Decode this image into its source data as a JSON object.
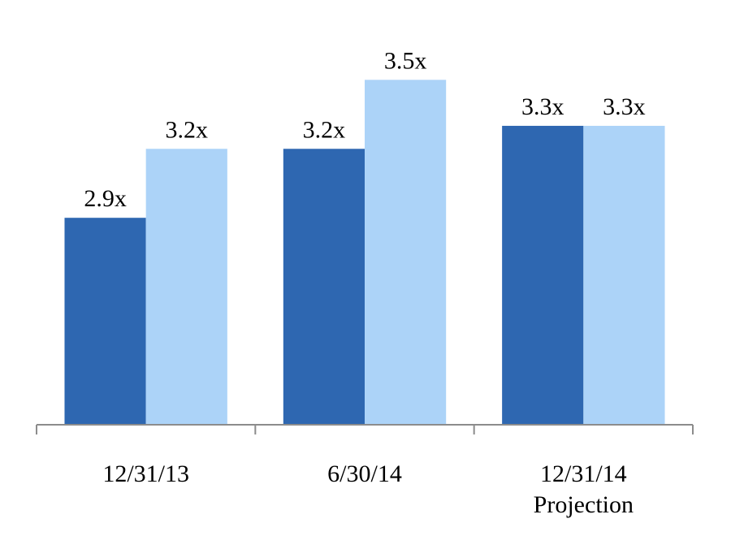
{
  "chart_data": {
    "type": "bar",
    "categories": [
      "12/31/13",
      "6/30/14",
      "12/31/14\nProjection"
    ],
    "series": [
      {
        "color": "#2e67b1",
        "values": [
          2.9,
          3.2,
          3.3
        ],
        "value_labels": [
          "2.9x",
          "3.2x",
          "3.3x"
        ]
      },
      {
        "color": "#acd3f8",
        "values": [
          3.2,
          3.5,
          3.3
        ],
        "value_labels": [
          "3.2x",
          "3.5x",
          "3.3x"
        ]
      }
    ],
    "ylim": [
      2,
      3.6
    ]
  }
}
